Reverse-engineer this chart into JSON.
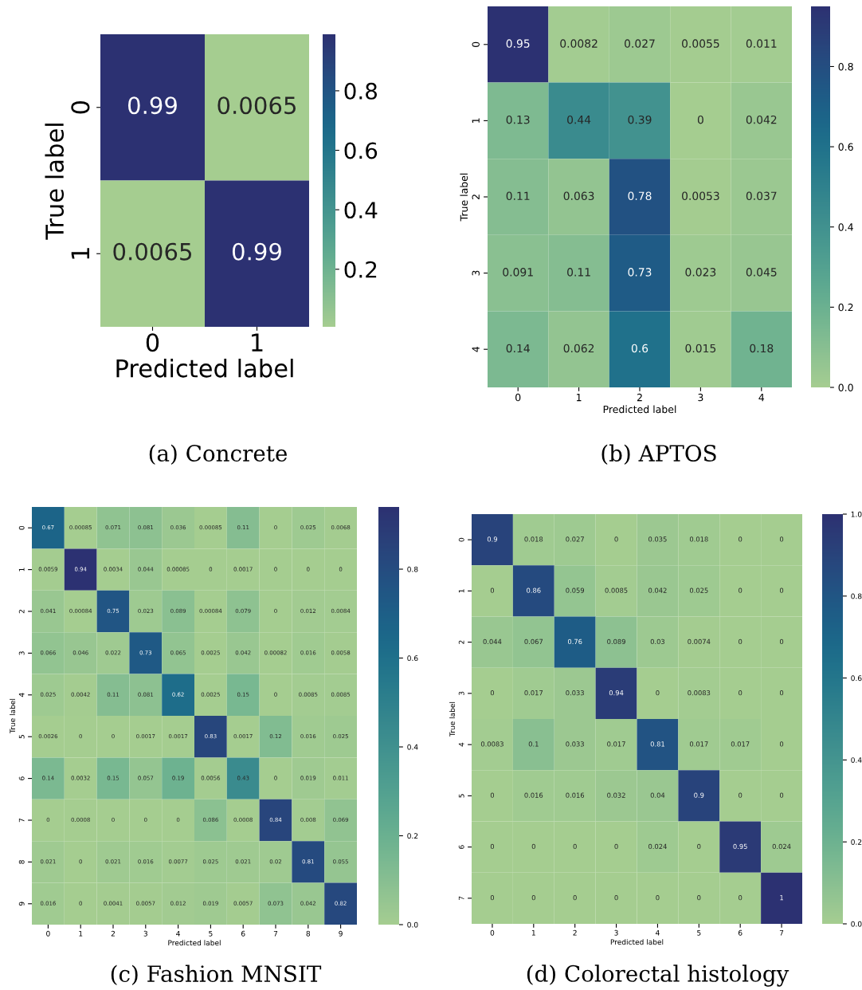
{
  "chart_data": [
    {
      "type": "heatmap",
      "title": "(a) Concrete",
      "xlabel": "Predicted label",
      "ylabel": "True label",
      "categories": [
        "0",
        "1"
      ],
      "y_categories": [
        "0",
        "1"
      ],
      "cells": [
        [
          0.99,
          0.0065
        ],
        [
          0.0065,
          0.99
        ]
      ],
      "data_labels": true,
      "clim": [
        0.0065,
        0.99
      ],
      "cticks": [
        {
          "value": 0.2,
          "label": "0.2"
        },
        {
          "value": 0.4,
          "label": "0.4"
        },
        {
          "value": 0.6,
          "label": "0.6"
        },
        {
          "value": 0.8,
          "label": "0.8"
        }
      ]
    },
    {
      "type": "heatmap",
      "title": "(b) APTOS",
      "xlabel": "Predicted label",
      "ylabel": "True label",
      "categories": [
        "0",
        "1",
        "2",
        "3",
        "4"
      ],
      "y_categories": [
        "0",
        "1",
        "2",
        "3",
        "4"
      ],
      "cells": [
        [
          0.95,
          0.0082,
          0.027,
          0.0055,
          0.011
        ],
        [
          0.13,
          0.44,
          0.39,
          0,
          0.042
        ],
        [
          0.11,
          0.063,
          0.78,
          0.0053,
          0.037
        ],
        [
          0.091,
          0.11,
          0.73,
          0.023,
          0.045
        ],
        [
          0.14,
          0.062,
          0.6,
          0.015,
          0.18
        ]
      ],
      "data_labels": true,
      "clim": [
        0,
        0.95
      ],
      "cticks": [
        {
          "value": 0,
          "label": "0.0"
        },
        {
          "value": 0.2,
          "label": "0.2"
        },
        {
          "value": 0.4,
          "label": "0.4"
        },
        {
          "value": 0.6,
          "label": "0.6"
        },
        {
          "value": 0.8,
          "label": "0.8"
        }
      ]
    },
    {
      "type": "heatmap",
      "title": "(c) Fashion MNSIT",
      "xlabel": "Predicted label",
      "ylabel": "True label",
      "categories": [
        "0",
        "1",
        "2",
        "3",
        "4",
        "5",
        "6",
        "7",
        "8",
        "9"
      ],
      "y_categories": [
        "0",
        "1",
        "2",
        "3",
        "4",
        "5",
        "6",
        "7",
        "8",
        "9"
      ],
      "cells": [
        [
          0.67,
          0.00085,
          0.071,
          0.081,
          0.036,
          0.00085,
          0.11,
          0,
          0.025,
          0.0068
        ],
        [
          0.0059,
          0.94,
          0.0034,
          0.044,
          0.00085,
          0,
          0.0017,
          0,
          0,
          0
        ],
        [
          0.041,
          0.00084,
          0.75,
          0.023,
          0.089,
          0.00084,
          0.079,
          0,
          0.012,
          0.0084
        ],
        [
          0.066,
          0.046,
          0.022,
          0.73,
          0.065,
          0.0025,
          0.042,
          0.00082,
          0.016,
          0.0058
        ],
        [
          0.025,
          0.0042,
          0.11,
          0.081,
          0.62,
          0.0025,
          0.15,
          0,
          0.0085,
          0.0085
        ],
        [
          0.0026,
          0,
          0,
          0.0017,
          0.0017,
          0.83,
          0.0017,
          0.12,
          0.016,
          0.025
        ],
        [
          0.14,
          0.0032,
          0.15,
          0.057,
          0.19,
          0.0056,
          0.43,
          0,
          0.019,
          0.011
        ],
        [
          0,
          0.0008,
          0,
          0,
          0,
          0.086,
          0.0008,
          0.84,
          0.008,
          0.069
        ],
        [
          0.021,
          0,
          0.021,
          0.016,
          0.0077,
          0.025,
          0.021,
          0.02,
          0.81,
          0.055
        ],
        [
          0.016,
          0,
          0.0041,
          0.0057,
          0.012,
          0.019,
          0.0057,
          0.073,
          0.042,
          0.82
        ]
      ],
      "data_labels": true,
      "clim": [
        0,
        0.94
      ],
      "cticks": [
        {
          "value": 0,
          "label": "0.0"
        },
        {
          "value": 0.2,
          "label": "0.2"
        },
        {
          "value": 0.4,
          "label": "0.4"
        },
        {
          "value": 0.6,
          "label": "0.6"
        },
        {
          "value": 0.8,
          "label": "0.8"
        }
      ]
    },
    {
      "type": "heatmap",
      "title": "(d) Colorectal histology",
      "xlabel": "Predicted label",
      "ylabel": "True label",
      "categories": [
        "0",
        "1",
        "2",
        "3",
        "4",
        "5",
        "6",
        "7"
      ],
      "y_categories": [
        "0",
        "1",
        "2",
        "3",
        "4",
        "5",
        "6",
        "7"
      ],
      "cells": [
        [
          0.9,
          0.018,
          0.027,
          0,
          0.035,
          0.018,
          0,
          0
        ],
        [
          0,
          0.86,
          0.059,
          0.0085,
          0.042,
          0.025,
          0,
          0
        ],
        [
          0.044,
          0.067,
          0.76,
          0.089,
          0.03,
          0.0074,
          0,
          0
        ],
        [
          0,
          0.017,
          0.033,
          0.94,
          0,
          0.0083,
          0,
          0
        ],
        [
          0.0083,
          0.1,
          0.033,
          0.017,
          0.81,
          0.017,
          0.017,
          0
        ],
        [
          0,
          0.016,
          0.016,
          0.032,
          0.04,
          0.9,
          0,
          0
        ],
        [
          0,
          0,
          0,
          0,
          0.024,
          0,
          0.95,
          0.024
        ],
        [
          0,
          0,
          0,
          0,
          0,
          0,
          0,
          1
        ]
      ],
      "data_labels": true,
      "clim": [
        0,
        1
      ],
      "cticks": [
        {
          "value": 0,
          "label": "0.0"
        },
        {
          "value": 0.2,
          "label": "0.2"
        },
        {
          "value": 0.4,
          "label": "0.4"
        },
        {
          "value": 0.6,
          "label": "0.6"
        },
        {
          "value": 0.8,
          "label": "0.8"
        },
        {
          "value": 1,
          "label": "1.0"
        }
      ]
    }
  ]
}
